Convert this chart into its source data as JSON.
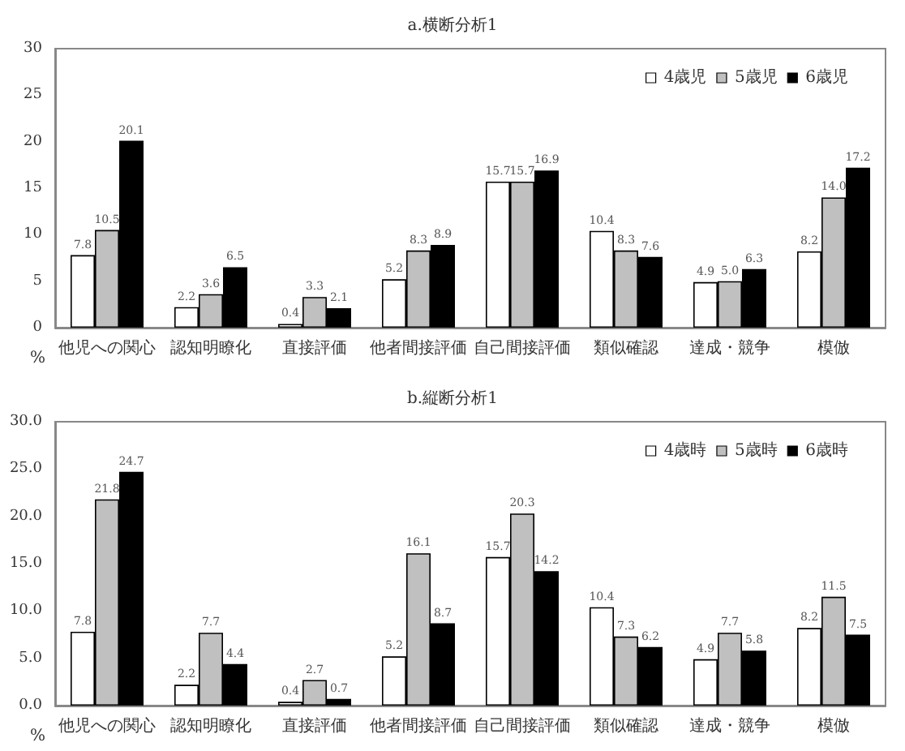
{
  "chart_data": [
    {
      "type": "bar",
      "title": "a.横断分析1",
      "ylabel": "%",
      "categories": [
        "他児への関心",
        "認知明瞭化",
        "直接評価",
        "他者間接評価",
        "自己間接評価",
        "類似確認",
        "達成・競争",
        "模倣"
      ],
      "series": [
        {
          "name": "4歳児",
          "color": "#ffffff",
          "values": [
            7.8,
            2.2,
            0.4,
            5.2,
            15.7,
            10.4,
            4.9,
            8.2
          ],
          "value_labels": [
            "7.8",
            "2.2",
            "0.4",
            "5.2",
            "15.7",
            "10.4",
            "4.9",
            "8.2"
          ]
        },
        {
          "name": "5歳児",
          "color": "#c0c0c0",
          "values": [
            10.5,
            3.6,
            3.3,
            8.3,
            15.7,
            8.3,
            5.0,
            14.0
          ],
          "value_labels": [
            "10.5",
            "3.6",
            "3.3",
            "8.3",
            "15.7",
            "8.3",
            "5.0",
            "14.0"
          ]
        },
        {
          "name": "6歳児",
          "color": "#000000",
          "values": [
            20.1,
            6.5,
            2.1,
            8.9,
            16.9,
            7.6,
            6.3,
            17.2
          ],
          "value_labels": [
            "20.1",
            "6.5",
            "2.1",
            "8.9",
            "16.9",
            "7.6",
            "6.3",
            "17.2"
          ]
        }
      ],
      "ylim": [
        0,
        30
      ],
      "yticks": [
        0,
        5,
        10,
        15,
        20,
        25,
        30
      ],
      "grid": false,
      "legend": "top right"
    },
    {
      "type": "bar",
      "title": "b.縦断分析1",
      "ylabel": "%",
      "categories": [
        "他児への関心",
        "認知明瞭化",
        "直接評価",
        "他者間接評価",
        "自己間接評価",
        "類似確認",
        "達成・競争",
        "模倣"
      ],
      "series": [
        {
          "name": "4歳時",
          "color": "#ffffff",
          "values": [
            7.8,
            2.2,
            0.4,
            5.2,
            15.7,
            10.4,
            4.9,
            8.2
          ]
        },
        {
          "name": "5歳時",
          "color": "#c0c0c0",
          "values": [
            21.8,
            7.7,
            2.7,
            16.1,
            20.3,
            7.3,
            7.7,
            11.5
          ]
        },
        {
          "name": "6歳時",
          "color": "#000000",
          "values": [
            24.7,
            4.4,
            0.7,
            8.7,
            14.2,
            6.2,
            5.8,
            7.5
          ]
        }
      ],
      "ylim": [
        0,
        30
      ],
      "yticks": [
        {
          "value": 0,
          "label": "0.0"
        },
        {
          "value": 5,
          "label": "5.0"
        },
        {
          "value": 10,
          "label": "10.0"
        },
        {
          "value": 15,
          "label": "15.0"
        },
        {
          "value": 20,
          "label": "20.0"
        },
        {
          "value": 25,
          "label": "25.0"
        },
        {
          "value": 30,
          "label": "30.0"
        }
      ],
      "grid": false,
      "legend": "top right",
      "data_labels": true
    }
  ]
}
